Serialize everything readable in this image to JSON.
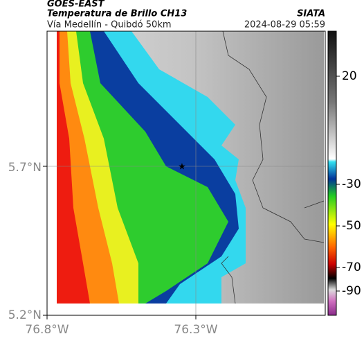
{
  "header": {
    "satellite": "GOES-EAST",
    "product": "Temperatura de Brillo CH13",
    "source": "SIATA",
    "route": "Vía Medellín - Quibdó 50km",
    "timestamp": "2024-08-29 05:59"
  },
  "map": {
    "lat_ticks": [
      "5.7°N",
      "5.2°N"
    ],
    "lon_ticks": [
      "76.8°W",
      "76.3°W"
    ]
  },
  "colorbar": {
    "ticks": [
      "20",
      "-30",
      "-50",
      "-70",
      "-90"
    ]
  }
}
